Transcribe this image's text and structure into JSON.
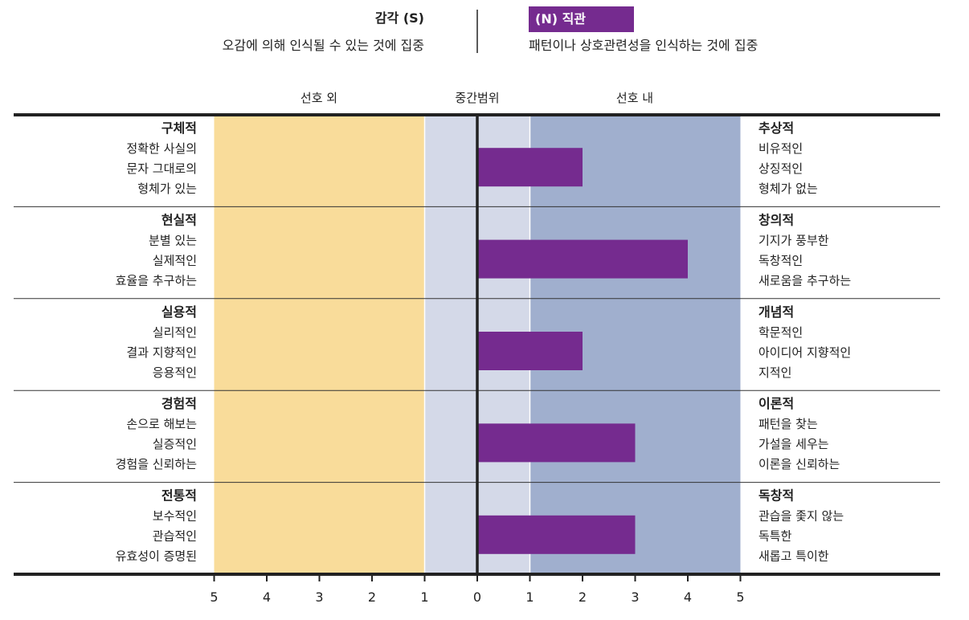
{
  "header": {
    "left_title": "감각 (S)",
    "left_desc": "오감에 의해 인식될 수 있는 것에 집중",
    "right_title": "(N) 직관",
    "right_desc": "패턴이나 상호관련성을 인식하는 것에 집중"
  },
  "zones": {
    "out_label": "선호 외",
    "mid_label": "중간범위",
    "in_label": "선호 내"
  },
  "colors": {
    "out_zone": "#f9dc9a",
    "mid_zone": "#d4d9e8",
    "in_zone": "#a0afce",
    "bar": "#752b8f",
    "title_badge": "#752b8f",
    "rule": "#222222"
  },
  "chart_data": {
    "type": "bar",
    "orientation": "horizontal",
    "xlim": [
      -5,
      5
    ],
    "ticks": [
      -5,
      -4,
      -3,
      -2,
      -1,
      0,
      1,
      2,
      3,
      4,
      5
    ],
    "tick_labels": [
      "5",
      "4",
      "3",
      "2",
      "1",
      "0",
      "1",
      "2",
      "3",
      "4",
      "5"
    ],
    "midrange": [
      -1,
      1
    ],
    "rows": [
      {
        "left_title": "구체적",
        "left_items": [
          "정확한 사실의",
          "문자 그대로의",
          "형체가 있는"
        ],
        "right_title": "추상적",
        "right_items": [
          "비유적인",
          "상징적인",
          "형체가 없는"
        ],
        "value": 2
      },
      {
        "left_title": "현실적",
        "left_items": [
          "분별 있는",
          "실제적인",
          "효율을 추구하는"
        ],
        "right_title": "창의적",
        "right_items": [
          "기지가 풍부한",
          "독창적인",
          "새로움을 추구하는"
        ],
        "value": 4
      },
      {
        "left_title": "실용적",
        "left_items": [
          "실리적인",
          "결과 지향적인",
          "응용적인"
        ],
        "right_title": "개념적",
        "right_items": [
          "학문적인",
          "아이디어 지향적인",
          "지적인"
        ],
        "value": 2
      },
      {
        "left_title": "경험적",
        "left_items": [
          "손으로 해보는",
          "실증적인",
          "경험을 신뢰하는"
        ],
        "right_title": "이론적",
        "right_items": [
          "패턴을 찾는",
          "가설을 세우는",
          "이론을 신뢰하는"
        ],
        "value": 3
      },
      {
        "left_title": "전통적",
        "left_items": [
          "보수적인",
          "관습적인",
          "유효성이 증명된"
        ],
        "right_title": "독창적",
        "right_items": [
          "관습을 좇지 않는",
          "독특한",
          "새롭고 특이한"
        ],
        "value": 3
      }
    ]
  }
}
